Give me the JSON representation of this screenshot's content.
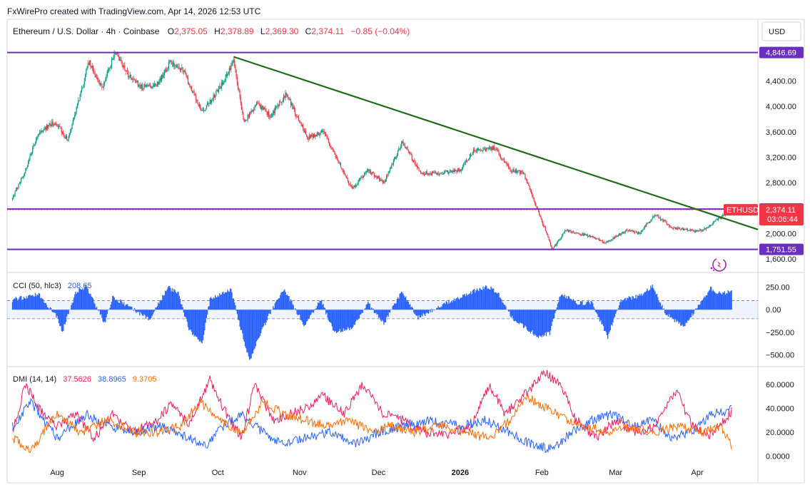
{
  "header": {
    "credit": "FxWirePro created with TradingView.com, Apr 14, 2026 12:53 UTC",
    "symbol": "Ethereum / U.S. Dollar · 4h · Coinbase",
    "ohlc": {
      "o_label": "O",
      "o": "2,375.05",
      "h_label": "H",
      "h": "2,378.89",
      "l_label": "L",
      "l": "2,369.30",
      "c_label": "C",
      "c": "2,374.11",
      "change": "−0.85 (−0.04%)"
    },
    "currency_button": "USD"
  },
  "price_axis": {
    "ticks": [
      "4,400.00",
      "4,000.00",
      "3,600.00",
      "3,200.00",
      "2,800.00",
      "2,000.00",
      "1,600.00"
    ],
    "tick_values": [
      4400,
      4000,
      3600,
      3200,
      2800,
      2000,
      1600
    ],
    "levels": [
      {
        "label": "4,846.69",
        "value": 4846.69
      },
      {
        "label": "2,384.59",
        "value": 2384.59
      },
      {
        "label": "1,751.55",
        "value": 1751.55
      }
    ],
    "last": {
      "symbol": "ETHUSD",
      "price": "2,374.11",
      "countdown": "03:06:44",
      "value": 2374.11
    }
  },
  "time_axis": [
    "Aug",
    "Sep",
    "Oct",
    "Nov",
    "Dec",
    "2026",
    "Feb",
    "Mar",
    "Apr"
  ],
  "cci": {
    "title": "CCI (50, hlc3)",
    "value": "208.65",
    "ticks": [
      "250.00",
      "0.00",
      "−250.00",
      "−500.00"
    ],
    "tick_values": [
      250,
      0,
      -250,
      -500
    ],
    "bands": [
      100,
      -100
    ]
  },
  "dmi": {
    "title": "DMI (14, 14)",
    "values": [
      "37.5626",
      "38.8965",
      "9.3705"
    ],
    "ticks": [
      "60.0000",
      "40.0000",
      "20.0000",
      "0.0000"
    ],
    "tick_values": [
      60,
      40,
      20,
      0
    ]
  },
  "colors": {
    "bull": "#089981",
    "bear": "#f23645",
    "level": "#6a2fbf",
    "trend": "#1f6b1a",
    "cci": "#2962ff",
    "plus_di": "#2962ff",
    "minus_di": "#e91e63",
    "adx": "#ff6d00"
  },
  "chart_data": {
    "type": "candlestick",
    "symbol": "ETHUSD",
    "timeframe": "4h",
    "price_path": [
      [
        "Jul 15",
        2560
      ],
      [
        "Jul 20",
        3000
      ],
      [
        "Jul 25",
        3600
      ],
      [
        "Jul 31",
        3750
      ],
      [
        "Aug 5",
        3480
      ],
      [
        "Aug 10",
        4200
      ],
      [
        "Aug 13",
        4700
      ],
      [
        "Aug 18",
        4300
      ],
      [
        "Aug 23",
        4846.69
      ],
      [
        "Aug 28",
        4500
      ],
      [
        "Sep 2",
        4300
      ],
      [
        "Sep 8",
        4350
      ],
      [
        "Sep 13",
        4700
      ],
      [
        "Sep 18",
        4550
      ],
      [
        "Sep 25",
        3900
      ],
      [
        "Oct 1",
        4250
      ],
      [
        "Oct 7",
        4700
      ],
      [
        "Oct 11",
        3750
      ],
      [
        "Oct 16",
        4050
      ],
      [
        "Oct 21",
        3850
      ],
      [
        "Oct 27",
        4200
      ],
      [
        "Nov 4",
        3500
      ],
      [
        "Nov 10",
        3600
      ],
      [
        "Nov 21",
        2700
      ],
      [
        "Nov 27",
        3000
      ],
      [
        "Dec 3",
        2800
      ],
      [
        "Dec 10",
        3450
      ],
      [
        "Dec 17",
        2950
      ],
      [
        "Dec 25",
        2950
      ],
      [
        "Jan 1",
        3000
      ],
      [
        "Jan 6",
        3300
      ],
      [
        "Jan 14",
        3350
      ],
      [
        "Jan 20",
        3000
      ],
      [
        "Jan 25",
        2950
      ],
      [
        "Jan 31",
        2300
      ],
      [
        "Feb 5",
        1751.55
      ],
      [
        "Feb 10",
        2050
      ],
      [
        "Feb 20",
        1950
      ],
      [
        "Feb 25",
        1850
      ],
      [
        "Mar 5",
        2050
      ],
      [
        "Mar 10",
        2000
      ],
      [
        "Mar 16",
        2300
      ],
      [
        "Mar 22",
        2100
      ],
      [
        "Mar 28",
        2050
      ],
      [
        "Apr 3",
        2050
      ],
      [
        "Apr 8",
        2200
      ],
      [
        "Apr 14",
        2374.11
      ]
    ],
    "horizontal_levels": [
      4846.69,
      2384.59,
      1751.55
    ],
    "trendline": {
      "from": [
        "Oct 7",
        4780
      ],
      "to": [
        "Apr 14",
        2200
      ]
    },
    "y_range": [
      1500,
      5000
    ],
    "cci": {
      "length": 50,
      "source": "hlc3",
      "range": [
        -600,
        350
      ],
      "path": [
        [
          "Jul 15",
          110
        ],
        [
          "Jul 25",
          170
        ],
        [
          "Aug 1",
          -80
        ],
        [
          "Aug 3",
          -240
        ],
        [
          "Aug 8",
          190
        ],
        [
          "Aug 12",
          260
        ],
        [
          "Aug 19",
          -150
        ],
        [
          "Aug 22",
          140
        ],
        [
          "Aug 28",
          40
        ],
        [
          "Sep 5",
          -110
        ],
        [
          "Sep 12",
          250
        ],
        [
          "Sep 16",
          180
        ],
        [
          "Sep 20",
          -220
        ],
        [
          "Sep 25",
          -380
        ],
        [
          "Sep 28",
          120
        ],
        [
          "Oct 3",
          190
        ],
        [
          "Oct 6",
          220
        ],
        [
          "Oct 11",
          -360
        ],
        [
          "Oct 13",
          -560
        ],
        [
          "Oct 20",
          -80
        ],
        [
          "Oct 26",
          230
        ],
        [
          "Nov 3",
          -180
        ],
        [
          "Nov 9",
          120
        ],
        [
          "Nov 14",
          -250
        ],
        [
          "Nov 21",
          -200
        ],
        [
          "Nov 27",
          70
        ],
        [
          "Dec 3",
          -150
        ],
        [
          "Dec 10",
          210
        ],
        [
          "Dec 16",
          -90
        ],
        [
          "Dec 24",
          40
        ],
        [
          "Jan 4",
          180
        ],
        [
          "Jan 11",
          260
        ],
        [
          "Jan 15",
          200
        ],
        [
          "Jan 21",
          -100
        ],
        [
          "Jan 27",
          -230
        ],
        [
          "Jan 31",
          -300
        ],
        [
          "Feb 4",
          -260
        ],
        [
          "Feb 8",
          170
        ],
        [
          "Feb 15",
          70
        ],
        [
          "Feb 20",
          80
        ],
        [
          "Feb 26",
          -300
        ],
        [
          "Mar 3",
          110
        ],
        [
          "Mar 10",
          150
        ],
        [
          "Mar 15",
          260
        ],
        [
          "Mar 20",
          -40
        ],
        [
          "Mar 27",
          -200
        ],
        [
          "Apr 2",
          70
        ],
        [
          "Apr 6",
          240
        ],
        [
          "Apr 10",
          170
        ],
        [
          "Apr 14",
          208.65
        ]
      ]
    },
    "dmi": {
      "di_length": 14,
      "adx_smoothing": 14,
      "range": [
        -5,
        70
      ],
      "series": [
        {
          "name": "",
          "last": 37.5626,
          "path": [
            [
              "Jul 15",
              20
            ],
            [
              "Jul 20",
              60
            ],
            [
              "Jul 25",
              40
            ],
            [
              "Aug 1",
              25
            ],
            [
              "Aug 8",
              35
            ],
            [
              "Aug 15",
              15
            ],
            [
              "Aug 22",
              35
            ],
            [
              "Aug 30",
              20
            ],
            [
              "Sep 8",
              30
            ],
            [
              "Sep 14",
              45
            ],
            [
              "Sep 20",
              25
            ],
            [
              "Sep 28",
              65
            ],
            [
              "Oct 3",
              40
            ],
            [
              "Oct 10",
              15
            ],
            [
              "Oct 15",
              60
            ],
            [
              "Oct 22",
              30
            ],
            [
              "Nov 3",
              40
            ],
            [
              "Nov 10",
              50
            ],
            [
              "Nov 18",
              35
            ],
            [
              "Nov 25",
              60
            ],
            [
              "Dec 3",
              35
            ],
            [
              "Dec 10",
              30
            ],
            [
              "Dec 18",
              20
            ],
            [
              "Dec 28",
              18
            ],
            [
              "Jan 5",
              25
            ],
            [
              "Jan 12",
              60
            ],
            [
              "Jan 18",
              35
            ],
            [
              "Jan 25",
              50
            ],
            [
              "Feb 2",
              70
            ],
            [
              "Feb 8",
              60
            ],
            [
              "Feb 14",
              30
            ],
            [
              "Feb 22",
              15
            ],
            [
              "Mar 1",
              30
            ],
            [
              "Mar 8",
              20
            ],
            [
              "Mar 16",
              25
            ],
            [
              "Mar 24",
              55
            ],
            [
              "Mar 30",
              25
            ],
            [
              "Apr 6",
              18
            ],
            [
              "Apr 14",
              37.5626
            ]
          ]
        },
        {
          "name": "",
          "last": 38.8965,
          "path": [
            [
              "Jul 15",
              25
            ],
            [
              "Jul 22",
              45
            ],
            [
              "Aug 1",
              15
            ],
            [
              "Aug 12",
              35
            ],
            [
              "Aug 20",
              25
            ],
            [
              "Aug 30",
              20
            ],
            [
              "Sep 10",
              25
            ],
            [
              "Sep 20",
              15
            ],
            [
              "Sep 27",
              10
            ],
            [
              "Oct 3",
              25
            ],
            [
              "Oct 10",
              35
            ],
            [
              "Oct 18",
              20
            ],
            [
              "Oct 25",
              10
            ],
            [
              "Nov 3",
              15
            ],
            [
              "Nov 12",
              20
            ],
            [
              "Nov 22",
              10
            ],
            [
              "Dec 1",
              20
            ],
            [
              "Dec 10",
              25
            ],
            [
              "Dec 20",
              30
            ],
            [
              "Jan 1",
              25
            ],
            [
              "Jan 10",
              30
            ],
            [
              "Jan 20",
              20
            ],
            [
              "Jan 28",
              10
            ],
            [
              "Feb 5",
              5
            ],
            [
              "Feb 12",
              20
            ],
            [
              "Feb 20",
              30
            ],
            [
              "Feb 28",
              35
            ],
            [
              "Mar 7",
              25
            ],
            [
              "Mar 15",
              30
            ],
            [
              "Mar 22",
              15
            ],
            [
              "Mar 30",
              20
            ],
            [
              "Apr 6",
              35
            ],
            [
              "Apr 14",
              38.8965
            ]
          ]
        },
        {
          "name": "",
          "last": 9.3705,
          "path": [
            [
              "Jul 15",
              15
            ],
            [
              "Jul 22",
              5
            ],
            [
              "Aug 1",
              35
            ],
            [
              "Aug 10",
              20
            ],
            [
              "Aug 20",
              30
            ],
            [
              "Aug 30",
              20
            ],
            [
              "Sep 8",
              20
            ],
            [
              "Sep 17",
              25
            ],
            [
              "Sep 24",
              45
            ],
            [
              "Oct 2",
              30
            ],
            [
              "Oct 10",
              20
            ],
            [
              "Oct 18",
              45
            ],
            [
              "Oct 26",
              35
            ],
            [
              "Nov 3",
              30
            ],
            [
              "Nov 12",
              25
            ],
            [
              "Nov 20",
              30
            ],
            [
              "Nov 28",
              20
            ],
            [
              "Dec 5",
              25
            ],
            [
              "Dec 14",
              20
            ],
            [
              "Dec 24",
              25
            ],
            [
              "Jan 3",
              20
            ],
            [
              "Jan 12",
              15
            ],
            [
              "Jan 20",
              30
            ],
            [
              "Jan 26",
              50
            ],
            [
              "Feb 3",
              40
            ],
            [
              "Feb 10",
              30
            ],
            [
              "Feb 18",
              25
            ],
            [
              "Feb 26",
              20
            ],
            [
              "Mar 6",
              25
            ],
            [
              "Mar 15",
              20
            ],
            [
              "Mar 25",
              25
            ],
            [
              "Apr 3",
              20
            ],
            [
              "Apr 10",
              25
            ],
            [
              "Apr 14",
              9.3705
            ]
          ]
        }
      ]
    }
  }
}
